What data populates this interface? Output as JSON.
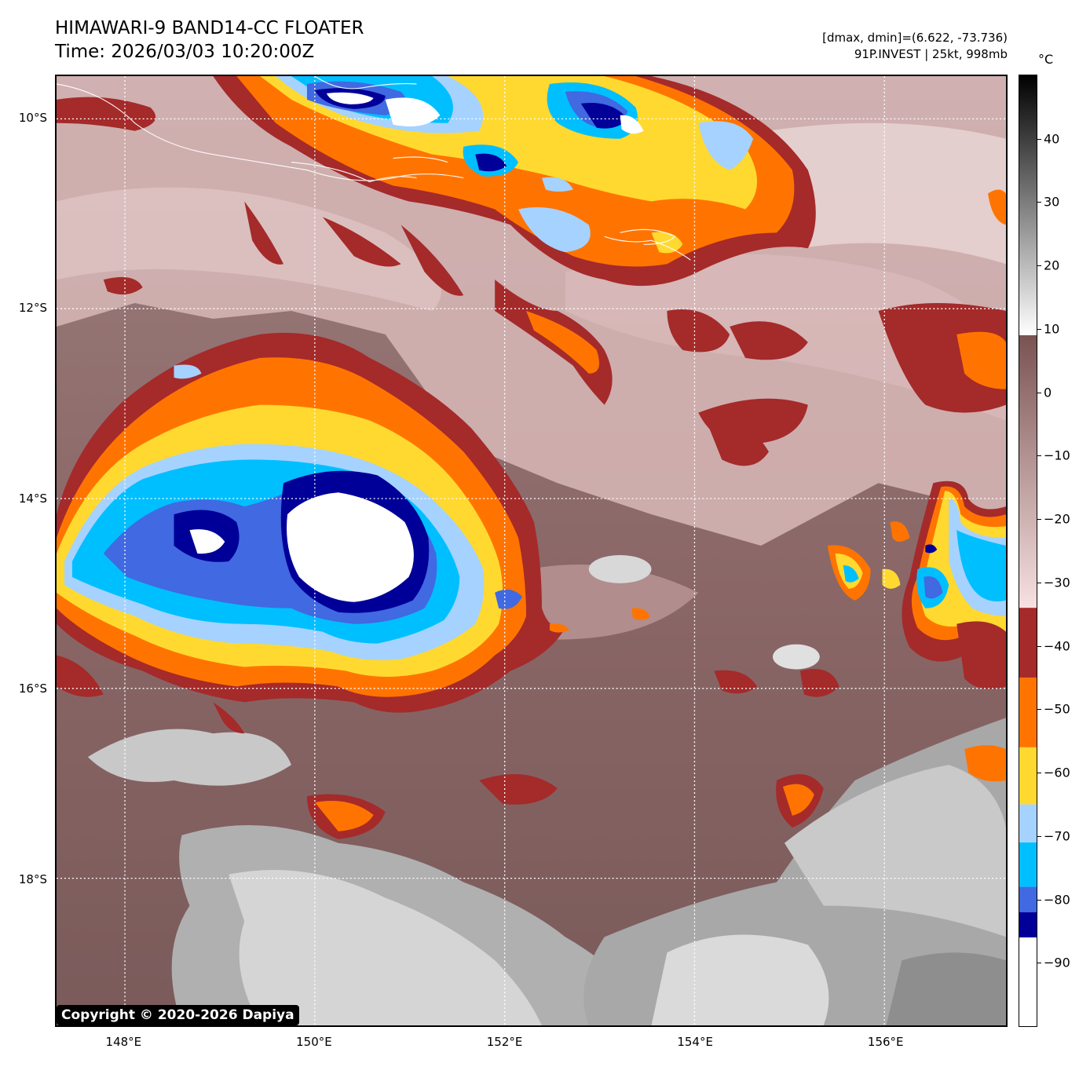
{
  "header": {
    "title_line1": "HIMAWARI-9 BAND14-CC FLOATER",
    "title_line2": "Time: 2026/03/03 10:20:00Z",
    "stats_line1": "[dmax, dmin]=(6.622, -73.736)",
    "stats_line2": "91P.INVEST | 25kt, 998mb"
  },
  "map": {
    "lat_labels": [
      "10°S",
      "12°S",
      "14°S",
      "16°S",
      "18°S"
    ],
    "lon_labels": [
      "148°E",
      "150°E",
      "152°E",
      "154°E",
      "156°E"
    ],
    "lat_values": [
      -10,
      -12,
      -14,
      -16,
      -18
    ],
    "lon_values": [
      148,
      150,
      152,
      154,
      156
    ],
    "lat_range": [
      -19.55,
      -9.55
    ],
    "lon_range": [
      147.28,
      157.28
    ],
    "gridlines": true
  },
  "colorbar": {
    "unit": "°C",
    "range": [
      -100,
      50
    ],
    "tick_values": [
      40,
      30,
      20,
      10,
      0,
      -10,
      -20,
      -30,
      -40,
      -50,
      -60,
      -70,
      -80,
      -90
    ],
    "tick_labels": [
      "40",
      "30",
      "20",
      "10",
      "0",
      "−10",
      "−20",
      "−30",
      "−40",
      "−50",
      "−60",
      "−70",
      "−80",
      "−90"
    ],
    "stops": [
      {
        "from": -100,
        "to": -86,
        "color": "#ffffff"
      },
      {
        "from": -86,
        "to": -82,
        "color": "#000099"
      },
      {
        "from": -82,
        "to": -78,
        "color": "#4169e1"
      },
      {
        "from": -78,
        "to": -71,
        "color": "#00bfff"
      },
      {
        "from": -71,
        "to": -65,
        "color": "#a6d2ff"
      },
      {
        "from": -65,
        "to": -56,
        "color": "#ffd92f"
      },
      {
        "from": -56,
        "to": -45,
        "color": "#ff7400"
      },
      {
        "from": -45,
        "to": -34,
        "color": "#a52a2a"
      }
    ]
  },
  "copyright": "Copyright © 2020-2026 Dapiya"
}
